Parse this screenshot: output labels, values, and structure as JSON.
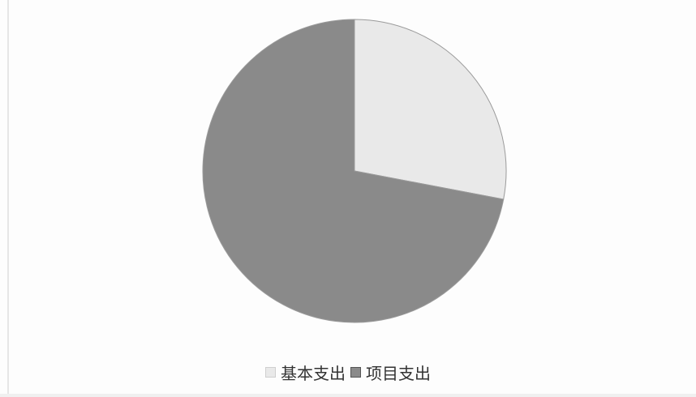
{
  "chart_data": {
    "type": "pie",
    "slices": [
      {
        "label": "基本支出",
        "value": 28,
        "color": "#e9e9e9"
      },
      {
        "label": "项目支出",
        "value": 72,
        "color": "#8a8a8a"
      }
    ],
    "start_angle_deg": 0,
    "direction": "clockwise",
    "legend_position": "bottom"
  }
}
